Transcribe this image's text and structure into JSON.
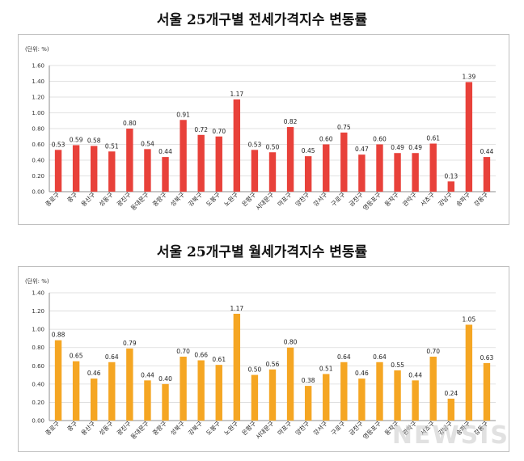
{
  "chart_data": [
    {
      "type": "bar",
      "title": "서울 25개구별 전세가격지수 변동률",
      "unit_label": "(단위: %)",
      "color": "#e8413a",
      "ylim": [
        0,
        1.6
      ],
      "yticks": [
        "0.00",
        "0.20",
        "0.40",
        "0.60",
        "0.80",
        "1.00",
        "1.20",
        "1.40",
        "1.60"
      ],
      "categories": [
        "종로구",
        "중구",
        "용산구",
        "성동구",
        "광진구",
        "동대문구",
        "중랑구",
        "성북구",
        "강북구",
        "도봉구",
        "노원구",
        "은평구",
        "서대문구",
        "마포구",
        "양천구",
        "강서구",
        "구로구",
        "금천구",
        "영등포구",
        "동작구",
        "관악구",
        "서초구",
        "강남구",
        "송파구",
        "강동구"
      ],
      "values": [
        0.53,
        0.59,
        0.58,
        0.51,
        0.8,
        0.54,
        0.44,
        0.91,
        0.72,
        0.7,
        1.17,
        0.53,
        0.5,
        0.82,
        0.45,
        0.6,
        0.75,
        0.47,
        0.6,
        0.49,
        0.49,
        0.61,
        0.13,
        1.39,
        0.44
      ],
      "value_labels": [
        "0.53",
        "0.59",
        "0.58",
        "0.51",
        "0.80",
        "0.54",
        "0.44",
        "0.91",
        "0.72",
        "0.70",
        "1.17",
        "0.53",
        "0.50",
        "0.82",
        "0.45",
        "0.60",
        "0.75",
        "0.47",
        "0.60",
        "0.49",
        "0.49",
        "0.61",
        "0.13",
        "1.39",
        "0.44"
      ],
      "grid": true
    },
    {
      "type": "bar",
      "title": "서울 25개구별 월세가격지수 변동률",
      "unit_label": "(단위: %)",
      "color": "#f5a623",
      "ylim": [
        0,
        1.4
      ],
      "yticks": [
        "0.00",
        "0.20",
        "0.40",
        "0.60",
        "0.80",
        "1.00",
        "1.20",
        "1.40"
      ],
      "categories": [
        "종로구",
        "중구",
        "용산구",
        "성동구",
        "광진구",
        "동대문구",
        "중랑구",
        "성북구",
        "강북구",
        "도봉구",
        "노원구",
        "은평구",
        "서대문구",
        "마포구",
        "양천구",
        "강서구",
        "구로구",
        "금천구",
        "영등포구",
        "동작구",
        "관악구",
        "서초구",
        "강남구",
        "송파구",
        "강동구"
      ],
      "values": [
        0.88,
        0.65,
        0.46,
        0.64,
        0.79,
        0.44,
        0.4,
        0.7,
        0.66,
        0.61,
        1.17,
        0.5,
        0.56,
        0.8,
        0.38,
        0.51,
        0.64,
        0.46,
        0.64,
        0.55,
        0.44,
        0.7,
        0.24,
        1.05,
        0.63
      ],
      "value_labels": [
        "0.88",
        "0.65",
        "0.46",
        "0.64",
        "0.79",
        "0.44",
        "0.40",
        "0.70",
        "0.66",
        "0.61",
        "1.17",
        "0.50",
        "0.56",
        "0.80",
        "0.38",
        "0.51",
        "0.64",
        "0.46",
        "0.64",
        "0.55",
        "0.44",
        "0.70",
        "0.24",
        "1.05",
        "0.63"
      ],
      "grid": true
    }
  ],
  "watermark": "NEWSIS"
}
